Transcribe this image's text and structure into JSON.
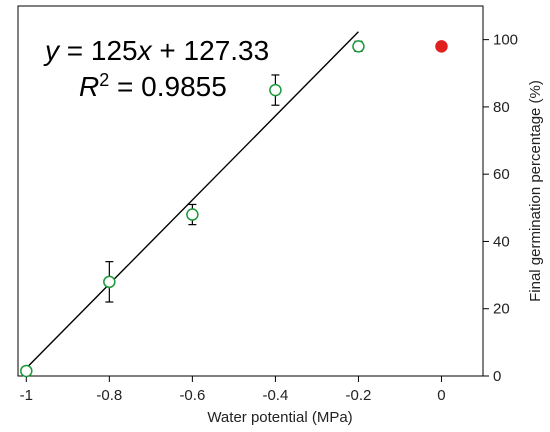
{
  "chart_data": {
    "type": "scatter",
    "xlabel": "Water potential (MPa)",
    "ylabel": "Final germination percentage (%)",
    "xlim": [
      -1.02,
      0.1
    ],
    "ylim": [
      0,
      110
    ],
    "x_ticks": [
      -1,
      -0.8,
      -0.6,
      -0.4,
      -0.2,
      0
    ],
    "x_tick_labels": [
      "-1",
      "-0.8",
      "-0.6",
      "-0.4",
      "-0.2",
      "0"
    ],
    "y_ticks": [
      0,
      20,
      40,
      60,
      80,
      100
    ],
    "y_tick_labels": [
      "0",
      "20",
      "40",
      "60",
      "80",
      "100"
    ],
    "y_axis_side": "right",
    "grid": false,
    "series": [
      {
        "marker": "open-circle",
        "color": "#1a9a3a",
        "points": [
          {
            "x": -1.0,
            "y": 1.5,
            "err": 0
          },
          {
            "x": -0.8,
            "y": 28,
            "err": 6
          },
          {
            "x": -0.6,
            "y": 48,
            "err": 3
          },
          {
            "x": -0.4,
            "y": 85,
            "err": 4.5
          },
          {
            "x": -0.2,
            "y": 98,
            "err": 1.5
          }
        ]
      },
      {
        "marker": "filled-circle",
        "color": "#e0201e",
        "points": [
          {
            "x": 0.0,
            "y": 98,
            "err": 1.2
          }
        ]
      }
    ],
    "fit_line": {
      "slope": 125,
      "intercept": 127.33,
      "x_range": [
        -1.0,
        -0.2
      ],
      "color": "#000000"
    },
    "equation": {
      "line1": {
        "y": "y",
        "eq_part": " = 125",
        "x": "x",
        "rest": " + 127.33"
      },
      "line2": {
        "r": "R",
        "sup": "2",
        "rest": " = 0.9855"
      }
    }
  }
}
